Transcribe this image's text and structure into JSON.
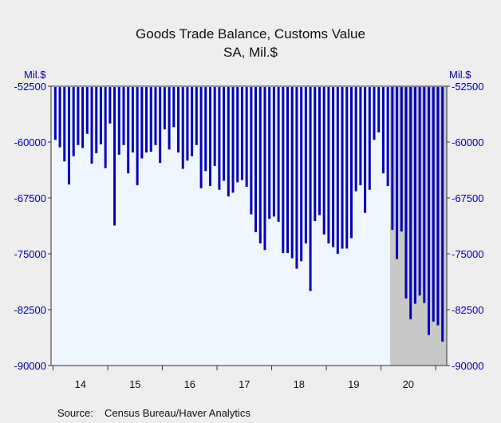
{
  "chart_data": {
    "type": "bar",
    "title": "Goods Trade Balance, Customs Value",
    "subtitle": "SA, Mil.$",
    "ylabel_left": "Mil.$",
    "ylabel_right": "Mil.$",
    "ylim": [
      -90000,
      -52500
    ],
    "yticks": [
      -52500,
      -60000,
      -67500,
      -75000,
      -82500,
      -90000
    ],
    "ytick_labels": [
      "-52500",
      "-60000",
      "-67500",
      "-75000",
      "-82500",
      "-90000"
    ],
    "x_year_labels": [
      "14",
      "15",
      "16",
      "17",
      "18",
      "19",
      "20"
    ],
    "shaded_region": {
      "start_index": 74,
      "end_index": 86,
      "color": "#c8c8c8"
    },
    "bar_color": "#0000bb",
    "plot_background": "#f0f6ff",
    "series": [
      {
        "values": [
          -59700,
          -60700,
          -62600,
          -65700,
          -61900,
          -60400,
          -60800,
          -58900,
          -62900,
          -61500,
          -60300,
          -63500,
          -57500,
          -71200,
          -61700,
          -60400,
          -64200,
          -61400,
          -65800,
          -62200,
          -61400,
          -61300,
          -60400,
          -62800,
          -58300,
          -61000,
          -58000,
          -61400,
          -63600,
          -62500,
          -61900,
          -60400,
          -66200,
          -63900,
          -65900,
          -63200,
          -66400,
          -65200,
          -67300,
          -66800,
          -65400,
          -65100,
          -66000,
          -69700,
          -72100,
          -73600,
          -74500,
          -70300,
          -70000,
          -70700,
          -74900,
          -74900,
          -75600,
          -77000,
          -76000,
          -73600,
          -80000,
          -70600,
          -69800,
          -72400,
          -73600,
          -74100,
          -75000,
          -74300,
          -74300,
          -72900,
          -66600,
          -65800,
          -69500,
          -66400,
          -59700,
          -58700,
          -64200,
          -65900,
          -71800,
          -75700,
          -72000,
          -81000,
          -83800,
          -81700,
          -80600,
          -81600,
          -85900,
          -84100,
          -84600,
          -86800
        ]
      }
    ]
  },
  "source_label": "Source:",
  "source_text": "Census Bureau/Haver Analytics"
}
